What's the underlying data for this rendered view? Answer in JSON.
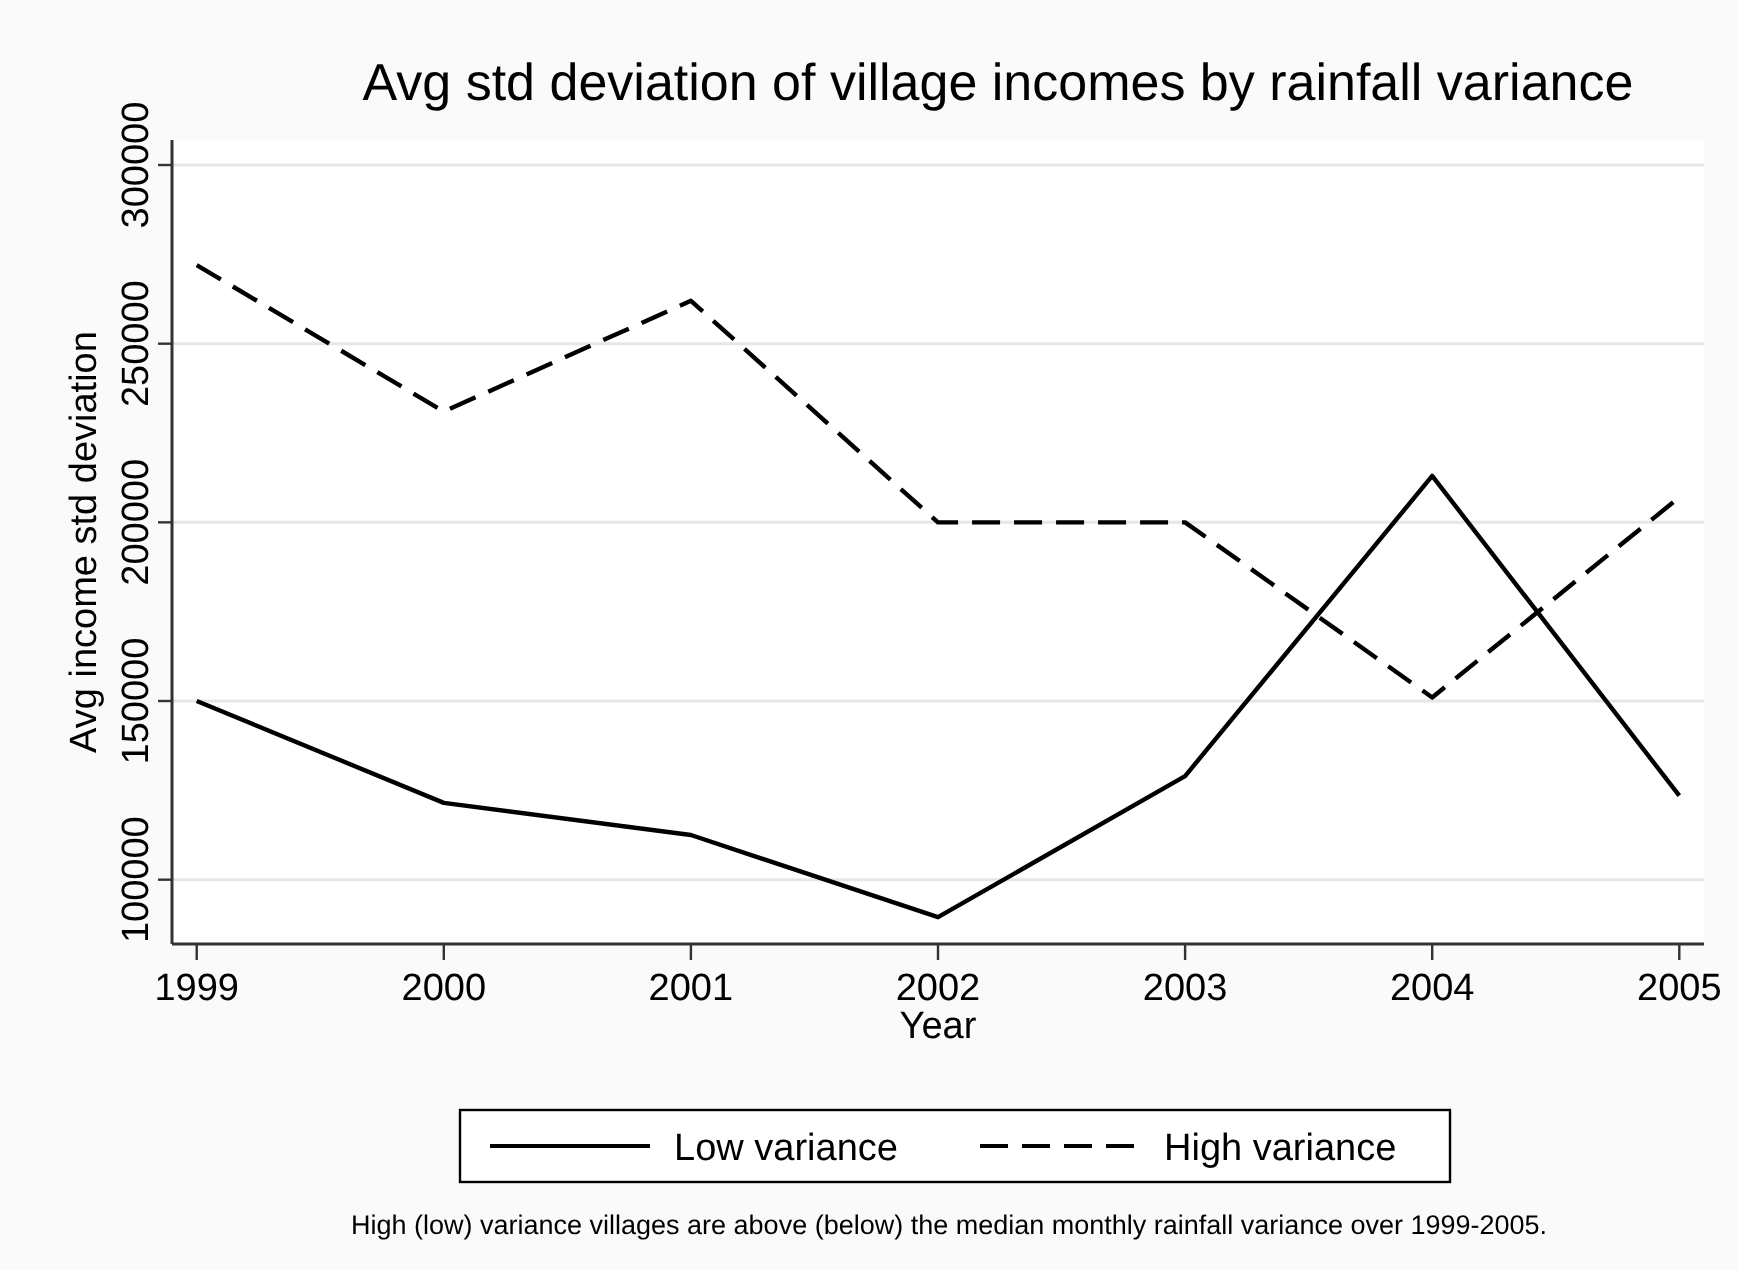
{
  "chart_data": {
    "type": "line",
    "title": "Avg std deviation of village incomes by rainfall variance",
    "xlabel": "Year",
    "ylabel": "Avg income std deviation",
    "x": [
      1999,
      2000,
      2001,
      2002,
      2003,
      2004,
      2005
    ],
    "series": [
      {
        "name": "Low variance",
        "color": "#000000",
        "line_style": "solid",
        "values": [
          150000,
          121500,
          112500,
          89500,
          129000,
          213000,
          123500
        ]
      },
      {
        "name": "High variance",
        "color": "#000000",
        "line_style": "dashed",
        "values": [
          272000,
          231000,
          262000,
          200000,
          200000,
          151000,
          207000
        ]
      }
    ],
    "xlim": [
      1998.9,
      2005.1
    ],
    "xticks": [
      1999,
      2000,
      2001,
      2002,
      2003,
      2004,
      2005
    ],
    "ylim": [
      82000,
      307000
    ],
    "yticks": [
      100000,
      150000,
      200000,
      250000,
      300000
    ],
    "grid": "y",
    "legend": "bottom",
    "marker": "none",
    "annotations": [
      "High (low) variance villages are above (below) the median monthly rainfall variance over 1999-2005."
    ]
  }
}
